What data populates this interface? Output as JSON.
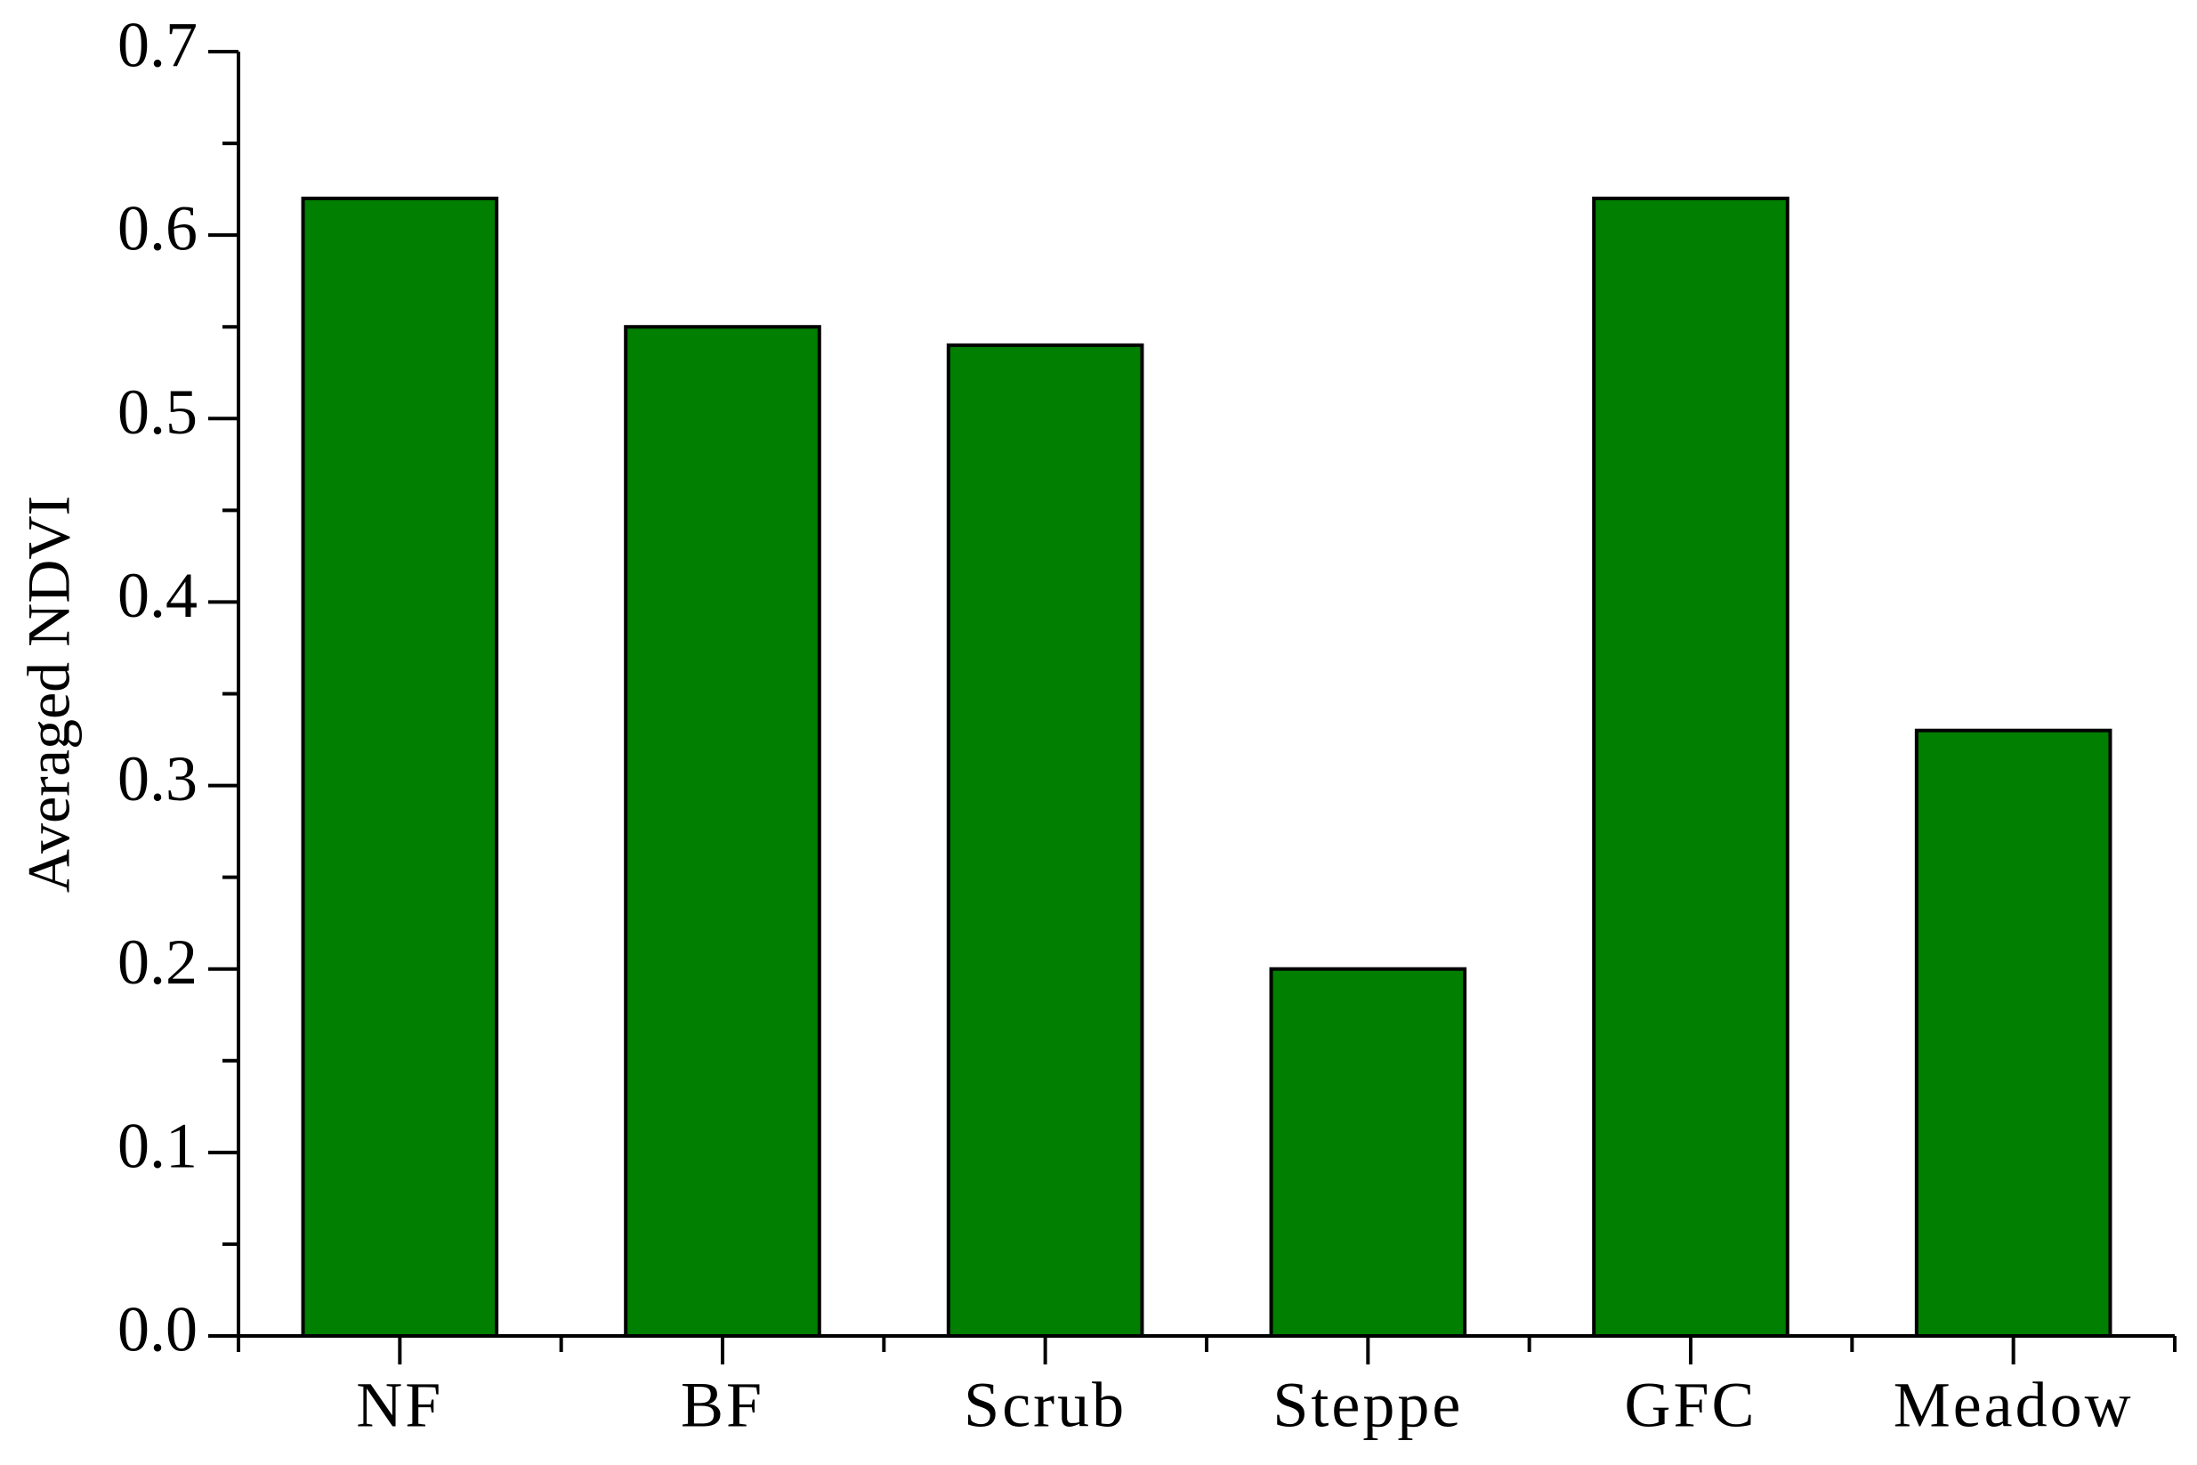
{
  "chart_data": {
    "type": "bar",
    "ylabel": "Averaged NDVI",
    "categories": [
      "NF",
      "BF",
      "Scrub",
      "Steppe",
      "GFC",
      "Meadow"
    ],
    "values": [
      0.62,
      0.55,
      0.54,
      0.2,
      0.62,
      0.33
    ],
    "color": "#007f00",
    "ylim": [
      0,
      0.7
    ],
    "yticks": [
      {
        "value": 0,
        "label": "0.0"
      },
      0.1,
      0.2,
      0.3,
      0.4,
      0.5,
      0.6,
      0.7
    ],
    "grid": false
  }
}
